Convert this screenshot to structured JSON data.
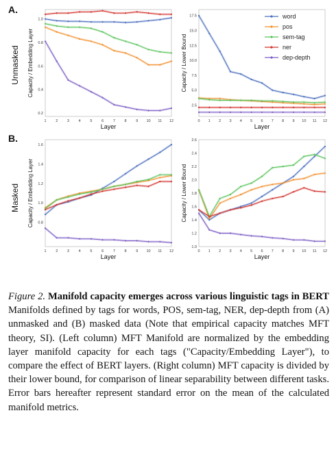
{
  "figure": {
    "panels": [
      {
        "letter": "A."
      },
      {
        "letter": "B."
      }
    ],
    "row_labels": [
      "Unmasked",
      "Masked"
    ],
    "legend_order": [
      "word",
      "pos",
      "sem-tag",
      "ner",
      "dep-depth"
    ]
  },
  "colors": {
    "word": "#4a6fbd",
    "pos": "#f28e2b",
    "sem-tag": "#59c25a",
    "ner": "#d1322c",
    "dep-depth": "#7b5cc4"
  },
  "chart_data": [
    {
      "type": "line",
      "panel": "A-left",
      "xlabel": "Layer",
      "ylabel": "Capacity / Embedding Layer",
      "x": [
        1,
        2,
        3,
        4,
        5,
        6,
        7,
        8,
        9,
        10,
        11,
        12
      ],
      "xticks": [
        "1",
        "2",
        "3",
        "4",
        "5",
        "6",
        "7",
        "8",
        "9",
        "10",
        "11",
        "12"
      ],
      "yticks": [
        "0.2",
        "0.4",
        "0.6",
        "0.8",
        "1.0"
      ],
      "ylim": [
        0.17,
        1.08
      ],
      "series": [
        {
          "name": "word",
          "values": [
            1.0,
            0.985,
            0.98,
            0.98,
            0.975,
            0.975,
            0.975,
            0.97,
            0.975,
            0.985,
            0.995,
            1.01
          ]
        },
        {
          "name": "pos",
          "values": [
            0.93,
            0.89,
            0.86,
            0.83,
            0.81,
            0.78,
            0.73,
            0.71,
            0.67,
            0.61,
            0.61,
            0.64
          ]
        },
        {
          "name": "sem-tag",
          "values": [
            0.96,
            0.94,
            0.93,
            0.93,
            0.92,
            0.89,
            0.84,
            0.81,
            0.78,
            0.74,
            0.72,
            0.71
          ]
        },
        {
          "name": "ner",
          "values": [
            1.04,
            1.05,
            1.05,
            1.06,
            1.06,
            1.07,
            1.05,
            1.05,
            1.06,
            1.05,
            1.04,
            1.04
          ]
        },
        {
          "name": "dep-depth",
          "values": [
            0.81,
            0.64,
            0.48,
            0.43,
            0.38,
            0.33,
            0.27,
            0.25,
            0.23,
            0.22,
            0.22,
            0.24
          ]
        }
      ]
    },
    {
      "type": "line",
      "panel": "A-right",
      "xlabel": "Layer",
      "ylabel": "Capacity / Lower Bound",
      "x": [
        0,
        1,
        2,
        3,
        4,
        5,
        6,
        7,
        8,
        9,
        10,
        11,
        12
      ],
      "xticks": [
        "0",
        "1",
        "2",
        "3",
        "4",
        "5",
        "6",
        "7",
        "8",
        "9",
        "10",
        "11",
        "12"
      ],
      "yticks": [
        "2.5",
        "5.0",
        "7.5",
        "10.0",
        "12.5",
        "15.0",
        "17.5"
      ],
      "ylim": [
        0.6,
        18.5
      ],
      "legend": {
        "placement": "top-right"
      },
      "series": [
        {
          "name": "word",
          "values": [
            17.5,
            14.5,
            11.5,
            8.1,
            7.7,
            6.8,
            6.2,
            5.0,
            4.6,
            4.3,
            3.9,
            3.6,
            4.1
          ]
        },
        {
          "name": "pos",
          "values": [
            3.7,
            3.6,
            3.6,
            3.4,
            3.3,
            3.2,
            3.1,
            3.0,
            2.9,
            2.8,
            2.7,
            2.6,
            2.7
          ]
        },
        {
          "name": "sem-tag",
          "values": [
            3.6,
            3.4,
            3.3,
            3.3,
            3.3,
            3.3,
            3.2,
            3.2,
            3.1,
            3.0,
            3.0,
            2.9,
            3.0
          ]
        },
        {
          "name": "ner",
          "values": [
            2.1,
            2.1,
            2.1,
            2.1,
            2.1,
            2.1,
            2.1,
            2.1,
            2.1,
            2.1,
            2.1,
            2.1,
            2.1
          ]
        },
        {
          "name": "dep-depth",
          "values": [
            1.3,
            1.3,
            1.3,
            1.3,
            1.3,
            1.3,
            1.3,
            1.3,
            1.3,
            1.3,
            1.3,
            1.3,
            1.3
          ]
        }
      ]
    },
    {
      "type": "line",
      "panel": "B-left",
      "xlabel": "Layer",
      "ylabel": "Capacity / Embedding Layer",
      "x": [
        1,
        2,
        3,
        4,
        5,
        6,
        7,
        8,
        9,
        10,
        11,
        12
      ],
      "xticks": [
        "1",
        "2",
        "3",
        "4",
        "5",
        "6",
        "7",
        "8",
        "9",
        "10",
        "11",
        "12"
      ],
      "yticks": [
        "0.8",
        "1.0",
        "1.2",
        "1.4",
        "1.6"
      ],
      "ylim": [
        0.55,
        1.65
      ],
      "series": [
        {
          "name": "word",
          "values": [
            0.88,
            0.98,
            1.01,
            1.05,
            1.08,
            1.15,
            1.22,
            1.3,
            1.38,
            1.45,
            1.52,
            1.6
          ]
        },
        {
          "name": "pos",
          "values": [
            0.95,
            1.03,
            1.07,
            1.1,
            1.12,
            1.14,
            1.17,
            1.19,
            1.21,
            1.23,
            1.26,
            1.28
          ]
        },
        {
          "name": "sem-tag",
          "values": [
            0.94,
            1.03,
            1.06,
            1.09,
            1.11,
            1.14,
            1.17,
            1.19,
            1.22,
            1.24,
            1.29,
            1.29
          ]
        },
        {
          "name": "ner",
          "values": [
            0.93,
            0.98,
            1.02,
            1.05,
            1.09,
            1.12,
            1.14,
            1.16,
            1.18,
            1.17,
            1.22,
            1.22
          ]
        },
        {
          "name": "dep-depth",
          "values": [
            0.74,
            0.64,
            0.64,
            0.63,
            0.63,
            0.62,
            0.62,
            0.61,
            0.61,
            0.6,
            0.6,
            0.59
          ]
        }
      ]
    },
    {
      "type": "line",
      "panel": "B-right",
      "xlabel": "Layer",
      "ylabel": "Capacity / Lower Bound",
      "x": [
        0,
        1,
        2,
        3,
        4,
        5,
        6,
        7,
        8,
        9,
        10,
        11,
        12
      ],
      "xticks": [
        "0",
        "1",
        "2",
        "3",
        "4",
        "5",
        "6",
        "7",
        "8",
        "9",
        "10",
        "11",
        "12"
      ],
      "yticks": [
        "1.0",
        "1.2",
        "1.4",
        "1.6",
        "1.8",
        "2.0",
        "2.2",
        "2.4",
        "2.6"
      ],
      "ylim": [
        1.0,
        2.6
      ],
      "series": [
        {
          "name": "word",
          "values": [
            1.55,
            1.4,
            1.5,
            1.55,
            1.6,
            1.65,
            1.75,
            1.85,
            1.95,
            2.05,
            2.2,
            2.35,
            2.5
          ]
        },
        {
          "name": "pos",
          "values": [
            1.85,
            1.42,
            1.65,
            1.72,
            1.78,
            1.85,
            1.9,
            1.93,
            1.95,
            2.0,
            2.02,
            2.08,
            2.1
          ]
        },
        {
          "name": "sem-tag",
          "values": [
            1.85,
            1.45,
            1.72,
            1.78,
            1.9,
            1.95,
            2.05,
            2.18,
            2.2,
            2.22,
            2.35,
            2.38,
            2.32
          ]
        },
        {
          "name": "ner",
          "values": [
            1.55,
            1.45,
            1.5,
            1.55,
            1.58,
            1.62,
            1.68,
            1.72,
            1.75,
            1.82,
            1.88,
            1.83,
            1.82
          ]
        },
        {
          "name": "dep-depth",
          "values": [
            1.5,
            1.25,
            1.2,
            1.2,
            1.18,
            1.16,
            1.15,
            1.13,
            1.12,
            1.1,
            1.1,
            1.08,
            1.08
          ]
        }
      ]
    }
  ],
  "caption": {
    "label": "Figure 2.",
    "title": "Manifold capacity emerges across various linguistic tags in BERT",
    "body": "Manifolds defined by tags for words, POS, sem-tag, NER, dep-depth from (A) unmasked and (B) masked data (Note that empirical capacity matches MFT theory, SI). (Left column) MFT Manifold are normalized by the embedding layer manifold capacity for each tags (\"Capacity/Embedding Layer\"), to compare the effect of BERT layers. (Right column) MFT capacity is divided by their lower bound, for comparison of linear separability between different tasks. Error bars hereafter represent standard error on the mean of the calculated manifold metrics."
  }
}
